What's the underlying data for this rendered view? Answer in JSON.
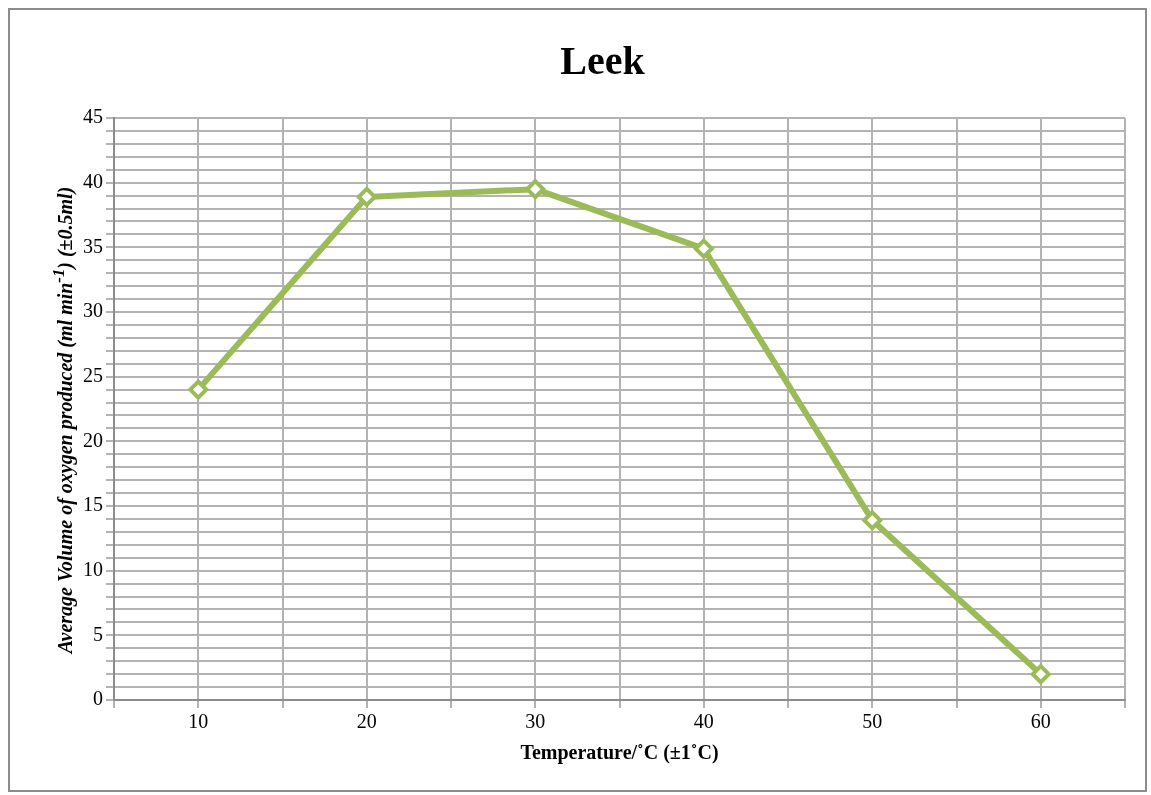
{
  "chart_data": {
    "type": "line",
    "title": "Leek",
    "xlabel": "Temperature/˚C (±1˚C)",
    "ylabel": "Average Volume of oxygen produced (ml min$^{-1}$) (±0.5ml)",
    "x": [
      10,
      20,
      30,
      40,
      50,
      60
    ],
    "series": [
      {
        "color": "#9bbb59",
        "values": [
          24,
          38.9,
          39.5,
          34.9,
          13.9,
          2
        ]
      }
    ],
    "xlim": [
      5,
      65
    ],
    "xticks": [
      {
        "value": 5,
        "label": null
      },
      10,
      {
        "value": 15,
        "label": null
      },
      20,
      {
        "value": 25,
        "label": null
      },
      30,
      {
        "value": 35,
        "label": null
      },
      40,
      {
        "value": 45,
        "label": null
      },
      50,
      {
        "value": 55,
        "label": null
      },
      60,
      {
        "value": 65,
        "label": null
      }
    ],
    "ylim": [
      0,
      45
    ],
    "yticks": [
      0,
      {
        "value": 1,
        "label": null
      },
      {
        "value": 2,
        "label": null
      },
      {
        "value": 3,
        "label": null
      },
      {
        "value": 4,
        "label": null
      },
      5,
      {
        "value": 6,
        "label": null
      },
      {
        "value": 7,
        "label": null
      },
      {
        "value": 8,
        "label": null
      },
      {
        "value": 9,
        "label": null
      },
      10,
      {
        "value": 11,
        "label": null
      },
      {
        "value": 12,
        "label": null
      },
      {
        "value": 13,
        "label": null
      },
      {
        "value": 14,
        "label": null
      },
      15,
      {
        "value": 16,
        "label": null
      },
      {
        "value": 17,
        "label": null
      },
      {
        "value": 18,
        "label": null
      },
      {
        "value": 19,
        "label": null
      },
      20,
      {
        "value": 21,
        "label": null
      },
      {
        "value": 22,
        "label": null
      },
      {
        "value": 23,
        "label": null
      },
      {
        "value": 24,
        "label": null
      },
      25,
      {
        "value": 26,
        "label": null
      },
      {
        "value": 27,
        "label": null
      },
      {
        "value": 28,
        "label": null
      },
      {
        "value": 29,
        "label": null
      },
      30,
      {
        "value": 31,
        "label": null
      },
      {
        "value": 32,
        "label": null
      },
      {
        "value": 33,
        "label": null
      },
      {
        "value": 34,
        "label": null
      },
      35,
      {
        "value": 36,
        "label": null
      },
      {
        "value": 37,
        "label": null
      },
      {
        "value": 38,
        "label": null
      },
      {
        "value": 39,
        "label": null
      },
      40,
      {
        "value": 41,
        "label": null
      },
      {
        "value": 42,
        "label": null
      },
      {
        "value": 43,
        "label": null
      },
      {
        "value": 44,
        "label": null
      },
      45
    ],
    "grid": true,
    "legend": false,
    "marker": "diamond",
    "line_style": "solid"
  }
}
